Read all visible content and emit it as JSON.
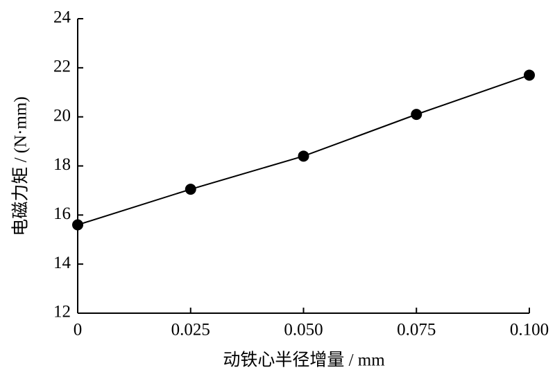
{
  "chart_data": {
    "type": "line",
    "x_label": "动铁心半径增量 / mm",
    "y_label": "电磁力矩 / (N·mm)",
    "x": [
      0,
      0.025,
      0.05,
      0.075,
      0.1
    ],
    "values": [
      15.6,
      17.05,
      18.4,
      20.1,
      21.7
    ],
    "color": "#000000",
    "xlim": [
      0,
      0.1
    ],
    "xticks": [
      0,
      0.025,
      {
        "value": 0.05,
        "label": "0.050"
      },
      0.075,
      {
        "value": 0.1,
        "label": "0.100"
      }
    ],
    "ylim": [
      12,
      24
    ],
    "yticks": [
      12,
      14,
      16,
      18,
      20,
      22,
      24
    ],
    "grid": false
  }
}
